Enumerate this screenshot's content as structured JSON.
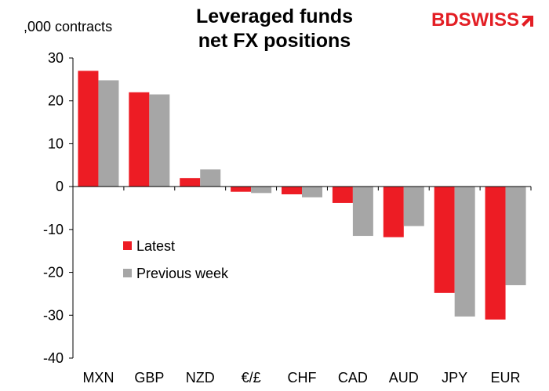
{
  "header": {
    "title_line1": "Leveraged funds",
    "title_line2": "net FX positions",
    "unit": ",000 contracts",
    "logo_part1": "BD",
    "logo_part2": "SWISS"
  },
  "colors": {
    "latest": "#ed1c24",
    "previous": "#a6a6a6",
    "brand": "#e31e24"
  },
  "chart_data": {
    "type": "bar",
    "title": "Leveraged funds net FX positions",
    "ylabel": ",000 contracts",
    "xlabel": "",
    "categories": [
      "MXN",
      "GBP",
      "NZD",
      "€/£",
      "CHF",
      "CAD",
      "AUD",
      "JPY",
      "EUR"
    ],
    "series": [
      {
        "name": "Latest",
        "values": [
          27.0,
          22.0,
          2.0,
          -1.2,
          -1.8,
          -3.8,
          -11.8,
          -24.8,
          -31.0
        ]
      },
      {
        "name": "Previous week",
        "values": [
          24.8,
          21.5,
          4.0,
          -1.5,
          -2.5,
          -11.5,
          -9.2,
          -30.3,
          -23.0
        ]
      }
    ],
    "ylim": [
      -40,
      30
    ],
    "yticks": [
      30,
      20,
      10,
      0,
      -10,
      -20,
      -30,
      -40
    ],
    "ytick_labels": [
      "30",
      "20",
      "10",
      "0",
      "-10",
      "-20",
      "-30",
      "-40"
    ],
    "grid": false,
    "legend_placement": "left-middle"
  }
}
